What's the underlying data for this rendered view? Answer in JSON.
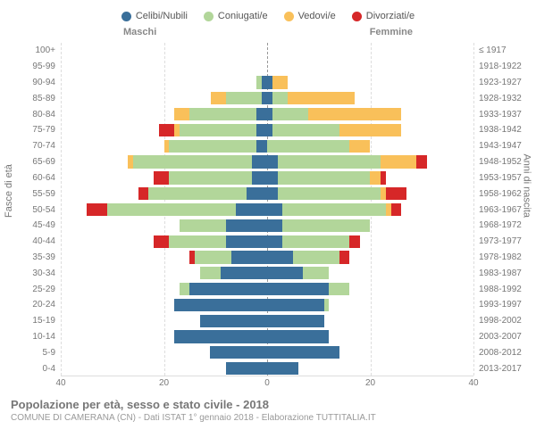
{
  "legend": [
    {
      "label": "Celibi/Nubili",
      "color": "#3a6f9a"
    },
    {
      "label": "Coniugati/e",
      "color": "#b2d69a"
    },
    {
      "label": "Vedovi/e",
      "color": "#f9c05a"
    },
    {
      "label": "Divorziati/e",
      "color": "#d62728"
    }
  ],
  "gender_labels": {
    "male": "Maschi",
    "female": "Femmine"
  },
  "y_label_left": "Fasce di età",
  "y_label_right": "Anni di nascita",
  "x_max": 40,
  "x_ticks": [
    40,
    20,
    0,
    20,
    40
  ],
  "colors": {
    "single": "#3a6f9a",
    "married": "#b2d69a",
    "widowed": "#f9c05a",
    "divorced": "#d62728",
    "grid": "#dddddd",
    "centerline": "#999999",
    "background": "#ffffff"
  },
  "footer": {
    "title": "Popolazione per età, sesso e stato civile - 2018",
    "subtitle": "COMUNE DI CAMERANA (CN) - Dati ISTAT 1° gennaio 2018 - Elaborazione TUTTITALIA.IT"
  },
  "rows": [
    {
      "age": "100+",
      "birth": "≤ 1917",
      "m": {
        "s": 0,
        "m": 0,
        "w": 0,
        "d": 0
      },
      "f": {
        "s": 0,
        "m": 0,
        "w": 0,
        "d": 0
      }
    },
    {
      "age": "95-99",
      "birth": "1918-1922",
      "m": {
        "s": 0,
        "m": 0,
        "w": 0,
        "d": 0
      },
      "f": {
        "s": 0,
        "m": 0,
        "w": 0,
        "d": 0
      }
    },
    {
      "age": "90-94",
      "birth": "1923-1927",
      "m": {
        "s": 1,
        "m": 1,
        "w": 0,
        "d": 0
      },
      "f": {
        "s": 1,
        "m": 0,
        "w": 3,
        "d": 0
      }
    },
    {
      "age": "85-89",
      "birth": "1928-1932",
      "m": {
        "s": 1,
        "m": 7,
        "w": 3,
        "d": 0
      },
      "f": {
        "s": 1,
        "m": 3,
        "w": 13,
        "d": 0
      }
    },
    {
      "age": "80-84",
      "birth": "1933-1937",
      "m": {
        "s": 2,
        "m": 13,
        "w": 3,
        "d": 0
      },
      "f": {
        "s": 1,
        "m": 7,
        "w": 18,
        "d": 0
      }
    },
    {
      "age": "75-79",
      "birth": "1938-1942",
      "m": {
        "s": 2,
        "m": 15,
        "w": 1,
        "d": 3
      },
      "f": {
        "s": 1,
        "m": 13,
        "w": 12,
        "d": 0
      }
    },
    {
      "age": "70-74",
      "birth": "1943-1947",
      "m": {
        "s": 2,
        "m": 17,
        "w": 1,
        "d": 0
      },
      "f": {
        "s": 0,
        "m": 16,
        "w": 4,
        "d": 0
      }
    },
    {
      "age": "65-69",
      "birth": "1948-1952",
      "m": {
        "s": 3,
        "m": 23,
        "w": 1,
        "d": 0
      },
      "f": {
        "s": 2,
        "m": 20,
        "w": 7,
        "d": 2
      }
    },
    {
      "age": "60-64",
      "birth": "1953-1957",
      "m": {
        "s": 3,
        "m": 16,
        "w": 0,
        "d": 3
      },
      "f": {
        "s": 2,
        "m": 18,
        "w": 2,
        "d": 1
      }
    },
    {
      "age": "55-59",
      "birth": "1958-1962",
      "m": {
        "s": 4,
        "m": 19,
        "w": 0,
        "d": 2
      },
      "f": {
        "s": 2,
        "m": 20,
        "w": 1,
        "d": 4
      }
    },
    {
      "age": "50-54",
      "birth": "1963-1967",
      "m": {
        "s": 6,
        "m": 25,
        "w": 0,
        "d": 4
      },
      "f": {
        "s": 3,
        "m": 20,
        "w": 1,
        "d": 2
      }
    },
    {
      "age": "45-49",
      "birth": "1968-1972",
      "m": {
        "s": 8,
        "m": 9,
        "w": 0,
        "d": 0
      },
      "f": {
        "s": 3,
        "m": 17,
        "w": 0,
        "d": 0
      }
    },
    {
      "age": "40-44",
      "birth": "1973-1977",
      "m": {
        "s": 8,
        "m": 11,
        "w": 0,
        "d": 3
      },
      "f": {
        "s": 3,
        "m": 13,
        "w": 0,
        "d": 2
      }
    },
    {
      "age": "35-39",
      "birth": "1978-1982",
      "m": {
        "s": 7,
        "m": 7,
        "w": 0,
        "d": 1
      },
      "f": {
        "s": 5,
        "m": 9,
        "w": 0,
        "d": 2
      }
    },
    {
      "age": "30-34",
      "birth": "1983-1987",
      "m": {
        "s": 9,
        "m": 4,
        "w": 0,
        "d": 0
      },
      "f": {
        "s": 7,
        "m": 5,
        "w": 0,
        "d": 0
      }
    },
    {
      "age": "25-29",
      "birth": "1988-1992",
      "m": {
        "s": 15,
        "m": 2,
        "w": 0,
        "d": 0
      },
      "f": {
        "s": 12,
        "m": 4,
        "w": 0,
        "d": 0
      }
    },
    {
      "age": "20-24",
      "birth": "1993-1997",
      "m": {
        "s": 18,
        "m": 0,
        "w": 0,
        "d": 0
      },
      "f": {
        "s": 11,
        "m": 1,
        "w": 0,
        "d": 0
      }
    },
    {
      "age": "15-19",
      "birth": "1998-2002",
      "m": {
        "s": 13,
        "m": 0,
        "w": 0,
        "d": 0
      },
      "f": {
        "s": 11,
        "m": 0,
        "w": 0,
        "d": 0
      }
    },
    {
      "age": "10-14",
      "birth": "2003-2007",
      "m": {
        "s": 18,
        "m": 0,
        "w": 0,
        "d": 0
      },
      "f": {
        "s": 12,
        "m": 0,
        "w": 0,
        "d": 0
      }
    },
    {
      "age": "5-9",
      "birth": "2008-2012",
      "m": {
        "s": 11,
        "m": 0,
        "w": 0,
        "d": 0
      },
      "f": {
        "s": 14,
        "m": 0,
        "w": 0,
        "d": 0
      }
    },
    {
      "age": "0-4",
      "birth": "2013-2017",
      "m": {
        "s": 8,
        "m": 0,
        "w": 0,
        "d": 0
      },
      "f": {
        "s": 6,
        "m": 0,
        "w": 0,
        "d": 0
      }
    }
  ]
}
